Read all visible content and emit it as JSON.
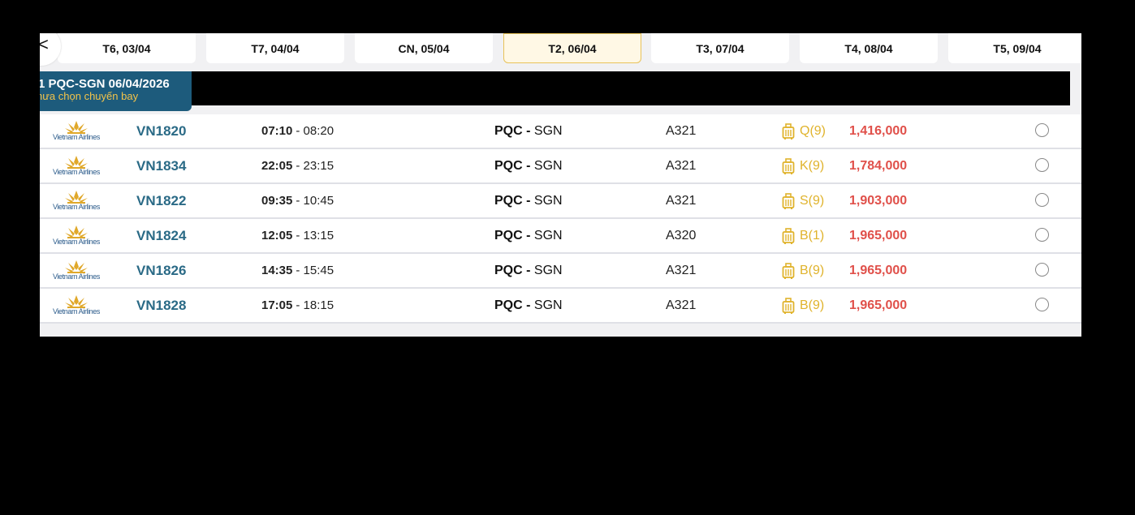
{
  "date_tabs": [
    {
      "label": "T6, 03/04"
    },
    {
      "label": "T7, 04/04"
    },
    {
      "label": "CN, 05/04"
    },
    {
      "label": "T2, 06/04",
      "selected": true
    },
    {
      "label": "T3, 07/04"
    },
    {
      "label": "T4, 08/04"
    },
    {
      "label": "T5, 09/04"
    }
  ],
  "back_icon": "chevron-left-icon",
  "leg": {
    "title": "1 PQC-SGN 06/04/2026",
    "status": "hưa chọn chuyến bay"
  },
  "colors": {
    "accent": "#1d5b7c",
    "price": "#e0504a",
    "class": "#e0b32c",
    "selected_tab_border": "#e8c25a"
  },
  "flights": [
    {
      "airline": "Vietnam Airlines",
      "number": "VN1820",
      "depart": "07:10",
      "arrive": "08:20",
      "from": "PQC",
      "to": "SGN",
      "aircraft": "A321",
      "class": "Q(9)",
      "price": "1,416,000"
    },
    {
      "airline": "Vietnam Airlines",
      "number": "VN1834",
      "depart": "22:05",
      "arrive": "23:15",
      "from": "PQC",
      "to": "SGN",
      "aircraft": "A321",
      "class": "K(9)",
      "price": "1,784,000"
    },
    {
      "airline": "Vietnam Airlines",
      "number": "VN1822",
      "depart": "09:35",
      "arrive": "10:45",
      "from": "PQC",
      "to": "SGN",
      "aircraft": "A321",
      "class": "S(9)",
      "price": "1,903,000"
    },
    {
      "airline": "Vietnam Airlines",
      "number": "VN1824",
      "depart": "12:05",
      "arrive": "13:15",
      "from": "PQC",
      "to": "SGN",
      "aircraft": "A320",
      "class": "B(1)",
      "price": "1,965,000"
    },
    {
      "airline": "Vietnam Airlines",
      "number": "VN1826",
      "depart": "14:35",
      "arrive": "15:45",
      "from": "PQC",
      "to": "SGN",
      "aircraft": "A321",
      "class": "B(9)",
      "price": "1,965,000"
    },
    {
      "airline": "Vietnam Airlines",
      "number": "VN1828",
      "depart": "17:05",
      "arrive": "18:15",
      "from": "PQC",
      "to": "SGN",
      "aircraft": "A321",
      "class": "B(9)",
      "price": "1,965,000"
    }
  ]
}
